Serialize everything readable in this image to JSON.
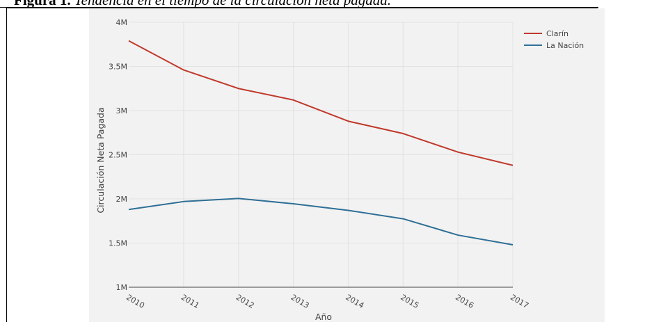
{
  "caption": {
    "label": "Figura 1.",
    "text": " Tendencia en el tiempo de la circulación neta pagada."
  },
  "chart_data": {
    "type": "line",
    "title": "",
    "xlabel": "Año",
    "ylabel": "Circulación Neta Pagada",
    "x": [
      "2010",
      "2011",
      "2012",
      "2013",
      "2014",
      "2015",
      "2016",
      "2017"
    ],
    "ylim": [
      1000000,
      4000000
    ],
    "yticks": [
      1000000,
      1500000,
      2000000,
      2500000,
      3000000,
      3500000,
      4000000
    ],
    "ytick_labels": [
      "1M",
      "1.5M",
      "2M",
      "2.5M",
      "3M",
      "3.5M",
      "4M"
    ],
    "grid": true,
    "legend_position": "top-right",
    "series": [
      {
        "name": "Clarín",
        "color": "#c0392b",
        "values": [
          3790000,
          3460000,
          3250000,
          3120000,
          2880000,
          2740000,
          2530000,
          2380000
        ]
      },
      {
        "name": "La Nación",
        "color": "#2e6f96",
        "values": [
          1880000,
          1970000,
          2005000,
          1945000,
          1870000,
          1775000,
          1590000,
          1480000
        ]
      }
    ]
  }
}
